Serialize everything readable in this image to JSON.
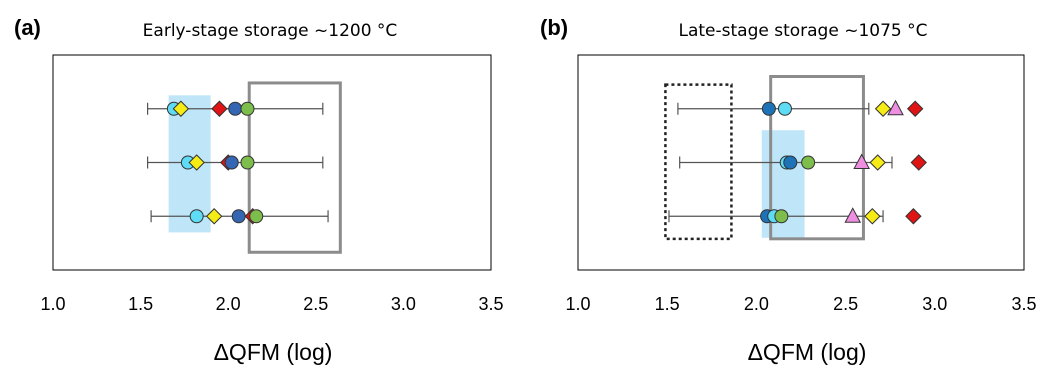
{
  "palette": {
    "cyan": "#5fdcf5",
    "yellow": "#f5ec16",
    "red": "#e01414",
    "blue": "#3466b4",
    "green": "#7cbd4c",
    "darkblue": "#1e73b8",
    "pink": "#ee8ee0",
    "shade": "#bfe5f8",
    "box": "#8c8c8c",
    "errbar": "#555555"
  },
  "chart_data": [
    {
      "type": "scatter",
      "panel_label": "(a)",
      "title": "Early-stage storage ~1200 °C",
      "xlabel": "ΔQFM (log)",
      "xlim": [
        1.0,
        3.5
      ],
      "xticks": [
        "1.0",
        "1.5",
        "2.0",
        "2.5",
        "3.0",
        "3.5"
      ],
      "grid": false,
      "shaded_range": {
        "x": [
          1.66,
          1.9
        ],
        "y_rows": [
          0.7,
          3.25
        ]
      },
      "box_range": {
        "x": [
          2.12,
          2.64
        ],
        "y_rows": [
          0.33,
          3.48
        ]
      },
      "rows": [
        {
          "row": 3,
          "errbar": [
            1.54,
            2.54
          ],
          "markers": [
            {
              "x": 1.69,
              "shape": "circle",
              "color": "cyan"
            },
            {
              "x": 1.73,
              "shape": "diamond",
              "color": "yellow"
            },
            {
              "x": 1.95,
              "shape": "diamond",
              "color": "red"
            },
            {
              "x": 2.04,
              "shape": "circle",
              "color": "blue"
            },
            {
              "x": 2.11,
              "shape": "circle",
              "color": "green"
            }
          ]
        },
        {
          "row": 2,
          "errbar": [
            1.54,
            2.54
          ],
          "markers": [
            {
              "x": 1.77,
              "shape": "circle",
              "color": "cyan"
            },
            {
              "x": 1.82,
              "shape": "diamond",
              "color": "yellow"
            },
            {
              "x": 2.0,
              "shape": "diamond",
              "color": "red"
            },
            {
              "x": 2.02,
              "shape": "circle",
              "color": "blue"
            },
            {
              "x": 2.11,
              "shape": "circle",
              "color": "green"
            }
          ]
        },
        {
          "row": 1,
          "errbar": [
            1.56,
            2.57
          ],
          "markers": [
            {
              "x": 1.82,
              "shape": "circle",
              "color": "cyan"
            },
            {
              "x": 1.92,
              "shape": "diamond",
              "color": "yellow"
            },
            {
              "x": 2.06,
              "shape": "circle",
              "color": "blue"
            },
            {
              "x": 2.14,
              "shape": "diamond",
              "color": "red"
            },
            {
              "x": 2.16,
              "shape": "circle",
              "color": "green"
            }
          ]
        }
      ]
    },
    {
      "type": "scatter",
      "panel_label": "(b)",
      "title": "Late-stage storage ~1075 °C",
      "xlabel": "ΔQFM (log)",
      "xlim": [
        1.0,
        3.5
      ],
      "xticks": [
        "1.0",
        "1.5",
        "2.0",
        "2.5",
        "3.0",
        "3.5"
      ],
      "grid": false,
      "shaded_range": {
        "x": [
          2.03,
          2.27
        ],
        "y_rows": [
          0.6,
          2.6
        ]
      },
      "box_range": {
        "x": [
          2.08,
          2.6
        ],
        "y_rows": [
          0.58,
          3.6
        ]
      },
      "dotted_box_range": {
        "x": [
          1.49,
          1.86
        ],
        "y_rows": [
          0.58,
          3.45
        ]
      },
      "rows": [
        {
          "row": 3,
          "errbar": [
            1.56,
            2.63
          ],
          "markers": [
            {
              "x": 2.07,
              "shape": "circle",
              "color": "darkblue"
            },
            {
              "x": 2.16,
              "shape": "circle",
              "color": "cyan"
            },
            {
              "x": 2.71,
              "shape": "diamond",
              "color": "yellow"
            },
            {
              "x": 2.78,
              "shape": "triangle",
              "color": "pink"
            },
            {
              "x": 2.89,
              "shape": "diamond",
              "color": "red"
            }
          ]
        },
        {
          "row": 2,
          "errbar": [
            1.57,
            2.76
          ],
          "markers": [
            {
              "x": 2.17,
              "shape": "circle",
              "color": "cyan"
            },
            {
              "x": 2.19,
              "shape": "circle",
              "color": "darkblue"
            },
            {
              "x": 2.29,
              "shape": "circle",
              "color": "green"
            },
            {
              "x": 2.59,
              "shape": "triangle",
              "color": "pink"
            },
            {
              "x": 2.68,
              "shape": "diamond",
              "color": "yellow"
            },
            {
              "x": 2.91,
              "shape": "diamond",
              "color": "red"
            }
          ]
        },
        {
          "row": 1,
          "errbar": [
            1.51,
            2.71
          ],
          "markers": [
            {
              "x": 2.06,
              "shape": "circle",
              "color": "darkblue"
            },
            {
              "x": 2.1,
              "shape": "circle",
              "color": "cyan"
            },
            {
              "x": 2.14,
              "shape": "circle",
              "color": "green"
            },
            {
              "x": 2.54,
              "shape": "triangle",
              "color": "pink"
            },
            {
              "x": 2.65,
              "shape": "diamond",
              "color": "yellow"
            },
            {
              "x": 2.88,
              "shape": "diamond",
              "color": "red"
            }
          ]
        }
      ]
    }
  ]
}
